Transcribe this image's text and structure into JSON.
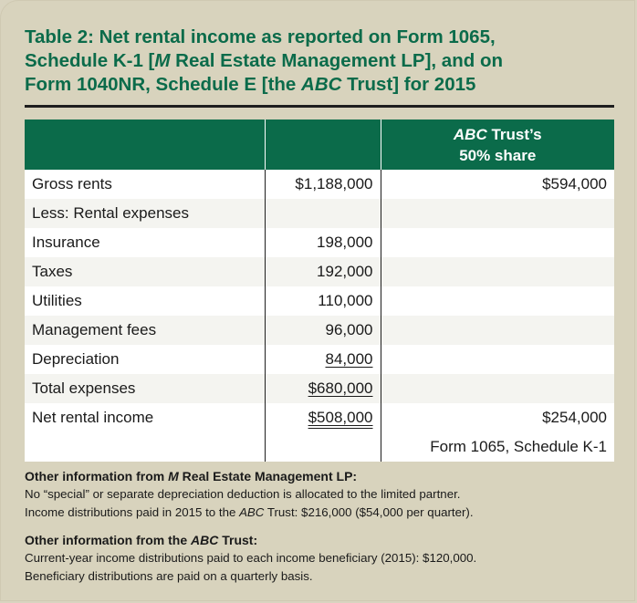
{
  "title": {
    "line1": "Table 2: Net rental income as reported on Form 1065,",
    "line2_a": "Schedule K-1 [",
    "line2_b": "M",
    "line2_c": " Real Estate Management LP], and on",
    "line3_a": "Form 1040NR, Schedule E [the ",
    "line3_b": "ABC",
    "line3_c": " Trust] for 2015"
  },
  "table": {
    "header": {
      "col1": "",
      "col2": "",
      "col3_a": "ABC",
      "col3_b": " Trust’s",
      "col3_c": "50% share"
    },
    "rows": [
      {
        "label": "Gross rents",
        "amount": "$1,188,000",
        "share": "$594,000"
      },
      {
        "label": "Less: Rental expenses",
        "amount": "",
        "share": ""
      },
      {
        "label": "Insurance",
        "amount": "198,000",
        "share": ""
      },
      {
        "label": "Taxes",
        "amount": "192,000",
        "share": ""
      },
      {
        "label": "Utilities",
        "amount": "110,000",
        "share": ""
      },
      {
        "label": "Management fees",
        "amount": "96,000",
        "share": ""
      },
      {
        "label": "Depreciation",
        "amount": "84,000",
        "share": ""
      },
      {
        "label": "Total expenses",
        "amount": "$680,000",
        "share": ""
      },
      {
        "label": "Net rental income",
        "amount": "$508,000",
        "share": "$254,000",
        "share_note": "Form 1065, Schedule K-1"
      }
    ]
  },
  "notes": {
    "m_heading_a": "Other information from ",
    "m_heading_b": "M",
    "m_heading_c": " Real Estate Management LP:",
    "m_line1": "No “special” or separate depreciation deduction is allocated to the limited partner.",
    "m_line2_a": "Income distributions paid in 2015 to the ",
    "m_line2_b": "ABC",
    "m_line2_c": " Trust: $216,000 ($54,000 per quarter).",
    "abc_heading_a": "Other information from the ",
    "abc_heading_b": "ABC",
    "abc_heading_c": " Trust:",
    "abc_line1": "Current-year income distributions paid to each income beneficiary (2015): $120,000.",
    "abc_line2": "Beneficiary distributions are paid on a quarterly basis."
  },
  "colors": {
    "accent_green": "#0b6b4a",
    "panel_tan": "#d8d3bd"
  }
}
